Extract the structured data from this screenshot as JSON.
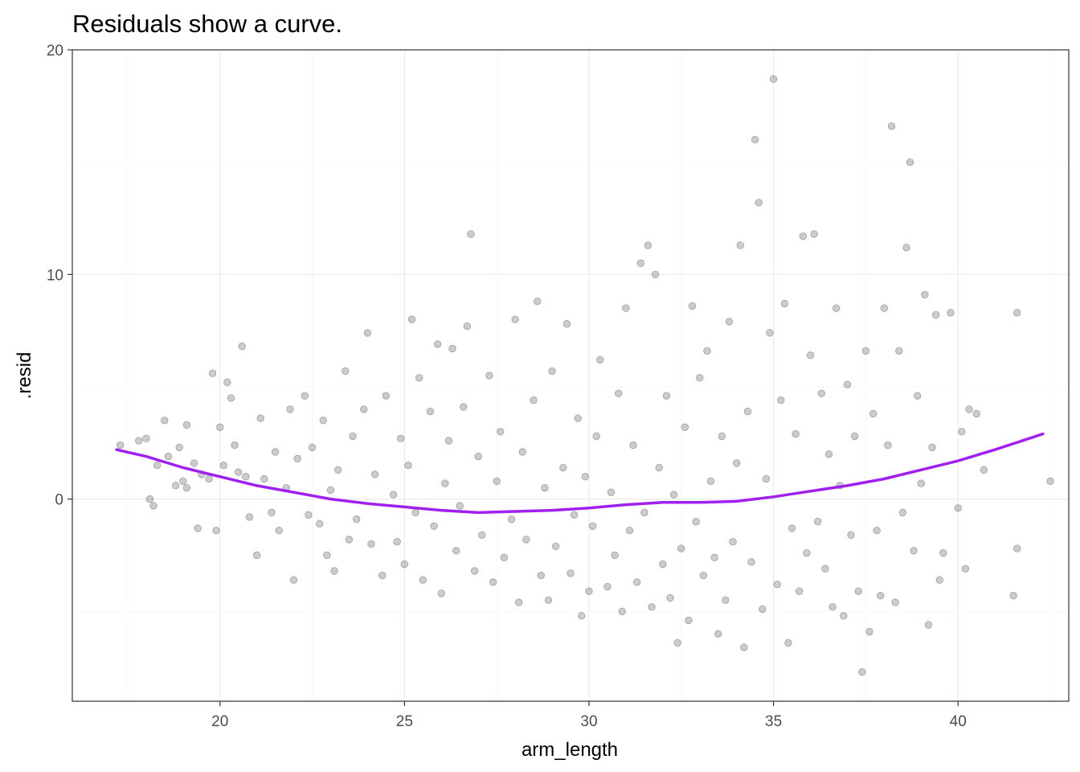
{
  "chart_data": {
    "type": "scatter",
    "title": "Residuals show a curve.",
    "xlabel": "arm_length",
    "ylabel": ".resid",
    "xlim": [
      16.0,
      43.0
    ],
    "ylim": [
      -9.0,
      20.0
    ],
    "x_ticks": [
      20,
      25,
      30,
      35,
      40
    ],
    "y_ticks": [
      0,
      10,
      20
    ],
    "grid": true,
    "legend": "none",
    "point_color": "#000000",
    "point_alpha": 0.2,
    "smooth_color": "#A020F0",
    "points": [
      [
        17.3,
        2.4
      ],
      [
        17.8,
        2.6
      ],
      [
        18.0,
        2.7
      ],
      [
        18.1,
        0.0
      ],
      [
        18.2,
        -0.3
      ],
      [
        18.3,
        1.5
      ],
      [
        18.5,
        3.5
      ],
      [
        18.6,
        1.9
      ],
      [
        18.8,
        0.6
      ],
      [
        18.9,
        2.3
      ],
      [
        19.0,
        0.8
      ],
      [
        19.1,
        3.3
      ],
      [
        19.1,
        0.5
      ],
      [
        19.3,
        1.6
      ],
      [
        19.4,
        -1.3
      ],
      [
        19.5,
        1.1
      ],
      [
        19.7,
        0.9
      ],
      [
        19.8,
        5.6
      ],
      [
        19.9,
        -1.4
      ],
      [
        20.0,
        3.2
      ],
      [
        20.1,
        1.5
      ],
      [
        20.2,
        5.2
      ],
      [
        20.3,
        4.5
      ],
      [
        20.4,
        2.4
      ],
      [
        20.5,
        1.2
      ],
      [
        20.6,
        6.8
      ],
      [
        20.7,
        1.0
      ],
      [
        20.8,
        -0.8
      ],
      [
        21.0,
        -2.5
      ],
      [
        21.1,
        3.6
      ],
      [
        21.2,
        0.9
      ],
      [
        21.4,
        -0.6
      ],
      [
        21.5,
        2.1
      ],
      [
        21.6,
        -1.4
      ],
      [
        21.8,
        0.5
      ],
      [
        21.9,
        4.0
      ],
      [
        22.0,
        -3.6
      ],
      [
        22.1,
        1.8
      ],
      [
        22.3,
        4.6
      ],
      [
        22.4,
        -0.7
      ],
      [
        22.5,
        2.3
      ],
      [
        22.7,
        -1.1
      ],
      [
        22.8,
        3.5
      ],
      [
        22.9,
        -2.5
      ],
      [
        23.0,
        0.4
      ],
      [
        23.1,
        -3.2
      ],
      [
        23.2,
        1.3
      ],
      [
        23.4,
        5.7
      ],
      [
        23.5,
        -1.8
      ],
      [
        23.6,
        2.8
      ],
      [
        23.7,
        -0.9
      ],
      [
        23.9,
        4.0
      ],
      [
        24.0,
        7.4
      ],
      [
        24.1,
        -2.0
      ],
      [
        24.2,
        1.1
      ],
      [
        24.4,
        -3.4
      ],
      [
        24.5,
        4.6
      ],
      [
        24.7,
        0.2
      ],
      [
        24.8,
        -1.9
      ],
      [
        24.9,
        2.7
      ],
      [
        25.0,
        -2.9
      ],
      [
        25.1,
        1.5
      ],
      [
        25.2,
        8.0
      ],
      [
        25.3,
        -0.6
      ],
      [
        25.4,
        5.4
      ],
      [
        25.5,
        -3.6
      ],
      [
        25.7,
        3.9
      ],
      [
        25.8,
        -1.2
      ],
      [
        25.9,
        6.9
      ],
      [
        26.0,
        -4.2
      ],
      [
        26.1,
        0.7
      ],
      [
        26.2,
        2.6
      ],
      [
        26.3,
        6.7
      ],
      [
        26.4,
        -2.3
      ],
      [
        26.5,
        -0.3
      ],
      [
        26.6,
        4.1
      ],
      [
        26.7,
        7.7
      ],
      [
        26.8,
        11.8
      ],
      [
        26.9,
        -3.2
      ],
      [
        27.0,
        1.9
      ],
      [
        27.1,
        -1.6
      ],
      [
        27.3,
        5.5
      ],
      [
        27.4,
        -3.7
      ],
      [
        27.5,
        0.8
      ],
      [
        27.6,
        3.0
      ],
      [
        27.7,
        -2.6
      ],
      [
        27.9,
        -0.9
      ],
      [
        28.0,
        8.0
      ],
      [
        28.1,
        -4.6
      ],
      [
        28.2,
        2.1
      ],
      [
        28.3,
        -1.8
      ],
      [
        28.5,
        4.4
      ],
      [
        28.6,
        8.8
      ],
      [
        28.7,
        -3.4
      ],
      [
        28.8,
        0.5
      ],
      [
        28.9,
        -4.5
      ],
      [
        29.0,
        5.7
      ],
      [
        29.1,
        -2.1
      ],
      [
        29.3,
        1.4
      ],
      [
        29.4,
        7.8
      ],
      [
        29.5,
        -3.3
      ],
      [
        29.6,
        -0.7
      ],
      [
        29.7,
        3.6
      ],
      [
        29.8,
        -5.2
      ],
      [
        29.9,
        1.0
      ],
      [
        30.0,
        -4.1
      ],
      [
        30.1,
        -1.2
      ],
      [
        30.2,
        2.8
      ],
      [
        30.3,
        6.2
      ],
      [
        30.5,
        -3.9
      ],
      [
        30.6,
        0.3
      ],
      [
        30.7,
        -2.5
      ],
      [
        30.8,
        4.7
      ],
      [
        30.9,
        -5.0
      ],
      [
        31.0,
        8.5
      ],
      [
        31.1,
        -1.4
      ],
      [
        31.2,
        2.4
      ],
      [
        31.3,
        -3.7
      ],
      [
        31.4,
        10.5
      ],
      [
        31.5,
        -0.6
      ],
      [
        31.6,
        11.3
      ],
      [
        31.7,
        -4.8
      ],
      [
        31.8,
        10.0
      ],
      [
        31.9,
        1.4
      ],
      [
        32.0,
        -2.9
      ],
      [
        32.1,
        4.6
      ],
      [
        32.2,
        -4.4
      ],
      [
        32.3,
        0.2
      ],
      [
        32.4,
        -6.4
      ],
      [
        32.5,
        -2.2
      ],
      [
        32.6,
        3.2
      ],
      [
        32.7,
        -5.4
      ],
      [
        32.8,
        8.6
      ],
      [
        32.9,
        -1.0
      ],
      [
        33.0,
        5.4
      ],
      [
        33.1,
        -3.4
      ],
      [
        33.2,
        6.6
      ],
      [
        33.3,
        0.8
      ],
      [
        33.4,
        -2.6
      ],
      [
        33.5,
        -6.0
      ],
      [
        33.6,
        2.8
      ],
      [
        33.7,
        -4.5
      ],
      [
        33.8,
        7.9
      ],
      [
        33.9,
        -1.9
      ],
      [
        34.0,
        1.6
      ],
      [
        34.1,
        11.3
      ],
      [
        34.2,
        -6.6
      ],
      [
        34.3,
        3.9
      ],
      [
        34.4,
        -2.8
      ],
      [
        34.5,
        16.0
      ],
      [
        34.6,
        13.2
      ],
      [
        34.7,
        -4.9
      ],
      [
        34.8,
        0.9
      ],
      [
        34.9,
        7.4
      ],
      [
        35.0,
        18.7
      ],
      [
        35.1,
        -3.8
      ],
      [
        35.2,
        4.4
      ],
      [
        35.3,
        8.7
      ],
      [
        35.4,
        -6.4
      ],
      [
        35.5,
        -1.3
      ],
      [
        35.6,
        2.9
      ],
      [
        35.7,
        -4.1
      ],
      [
        35.8,
        11.7
      ],
      [
        35.9,
        -2.4
      ],
      [
        36.0,
        6.4
      ],
      [
        36.1,
        11.8
      ],
      [
        36.2,
        -1.0
      ],
      [
        36.3,
        4.7
      ],
      [
        36.4,
        -3.1
      ],
      [
        36.5,
        2.0
      ],
      [
        36.6,
        -4.8
      ],
      [
        36.7,
        8.5
      ],
      [
        36.8,
        0.6
      ],
      [
        36.9,
        -5.2
      ],
      [
        37.0,
        5.1
      ],
      [
        37.1,
        -1.6
      ],
      [
        37.2,
        2.8
      ],
      [
        37.3,
        -4.1
      ],
      [
        37.4,
        -7.7
      ],
      [
        37.5,
        6.6
      ],
      [
        37.6,
        -5.9
      ],
      [
        37.7,
        3.8
      ],
      [
        37.8,
        -1.4
      ],
      [
        37.9,
        -4.3
      ],
      [
        38.0,
        8.5
      ],
      [
        38.1,
        2.4
      ],
      [
        38.2,
        16.6
      ],
      [
        38.3,
        -4.6
      ],
      [
        38.4,
        6.6
      ],
      [
        38.5,
        -0.6
      ],
      [
        38.6,
        11.2
      ],
      [
        38.7,
        15.0
      ],
      [
        38.8,
        -2.3
      ],
      [
        38.9,
        4.6
      ],
      [
        39.0,
        0.7
      ],
      [
        39.1,
        9.1
      ],
      [
        39.2,
        -5.6
      ],
      [
        39.3,
        2.3
      ],
      [
        39.4,
        8.2
      ],
      [
        39.5,
        -3.6
      ],
      [
        39.6,
        -2.4
      ],
      [
        39.8,
        8.3
      ],
      [
        40.0,
        -0.4
      ],
      [
        40.1,
        3.0
      ],
      [
        40.2,
        -3.1
      ],
      [
        40.3,
        4.0
      ],
      [
        40.5,
        3.8
      ],
      [
        40.7,
        1.3
      ],
      [
        41.5,
        -4.3
      ],
      [
        41.6,
        8.3
      ],
      [
        41.6,
        -2.2
      ],
      [
        42.5,
        0.8
      ]
    ],
    "smooth": [
      [
        17.2,
        2.2
      ],
      [
        18.0,
        1.9
      ],
      [
        19.0,
        1.4
      ],
      [
        20.0,
        1.0
      ],
      [
        21.0,
        0.6
      ],
      [
        22.0,
        0.3
      ],
      [
        23.0,
        0.0
      ],
      [
        24.0,
        -0.2
      ],
      [
        25.0,
        -0.35
      ],
      [
        26.0,
        -0.5
      ],
      [
        27.0,
        -0.6
      ],
      [
        28.0,
        -0.55
      ],
      [
        29.0,
        -0.5
      ],
      [
        30.0,
        -0.4
      ],
      [
        31.0,
        -0.25
      ],
      [
        32.0,
        -0.15
      ],
      [
        33.0,
        -0.15
      ],
      [
        34.0,
        -0.1
      ],
      [
        35.0,
        0.1
      ],
      [
        36.0,
        0.35
      ],
      [
        37.0,
        0.6
      ],
      [
        38.0,
        0.9
      ],
      [
        39.0,
        1.3
      ],
      [
        40.0,
        1.7
      ],
      [
        41.0,
        2.2
      ],
      [
        42.3,
        2.9
      ]
    ]
  }
}
